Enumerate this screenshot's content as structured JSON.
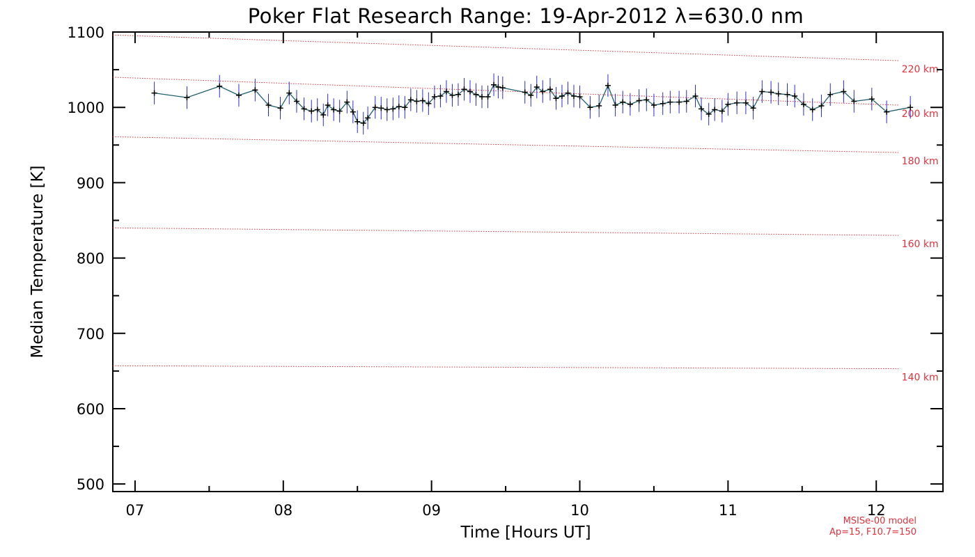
{
  "chart_data": {
    "type": "line",
    "title": "Poker Flat Research Range: 19-Apr-2012 λ=630.0 nm",
    "xlabel": "Time [Hours UT]",
    "ylabel": "Median Temperature [K]",
    "xlim": [
      6.85,
      12.45
    ],
    "ylim": [
      490,
      1100
    ],
    "x_ticks": [
      7,
      8,
      9,
      10,
      11,
      12
    ],
    "x_tick_labels": [
      "07",
      "08",
      "09",
      "10",
      "11",
      "12"
    ],
    "y_ticks": [
      500,
      600,
      700,
      800,
      900,
      1000,
      1100
    ],
    "y_tick_labels": [
      "500",
      "600",
      "700",
      "800",
      "900",
      "1000",
      "1100"
    ],
    "grid": false,
    "colors": {
      "series_line": "#1e5f6e",
      "marker": "#000000",
      "error_bar": "#2b2bd6",
      "model_line": "#e0323c"
    },
    "series": [
      {
        "marker": "plus",
        "error_bar": 15,
        "x": [
          7.13,
          7.35,
          7.57,
          7.7,
          7.81,
          7.9,
          7.98,
          8.04,
          8.09,
          8.14,
          8.19,
          8.23,
          8.27,
          8.3,
          8.34,
          8.38,
          8.43,
          8.47,
          8.5,
          8.54,
          8.57,
          8.62,
          8.66,
          8.7,
          8.74,
          8.78,
          8.82,
          8.86,
          8.9,
          8.94,
          8.98,
          9.02,
          9.06,
          9.1,
          9.14,
          9.18,
          9.22,
          9.26,
          9.3,
          9.34,
          9.38,
          9.42,
          9.45,
          9.48,
          9.63,
          9.67,
          9.71,
          9.75,
          9.8,
          9.84,
          9.88,
          9.92,
          9.96,
          10.0,
          10.07,
          10.13,
          10.19,
          10.24,
          10.29,
          10.34,
          10.4,
          10.45,
          10.5,
          10.56,
          10.61,
          10.67,
          10.72,
          10.78,
          10.82,
          10.87,
          10.91,
          10.96,
          11.0,
          11.06,
          11.12,
          11.17,
          11.23,
          11.29,
          11.34,
          11.4,
          11.45,
          11.51,
          11.57,
          11.63,
          11.69,
          11.78,
          11.85,
          11.97,
          12.07,
          12.23
        ],
        "y": [
          1019,
          1013,
          1028,
          1016,
          1023,
          1003,
          999,
          1019,
          1008,
          998,
          995,
          997,
          990,
          1003,
          997,
          995,
          1007,
          994,
          981,
          979,
          986,
          1000,
          999,
          997,
          998,
          1001,
          1000,
          1010,
          1008,
          1009,
          1005,
          1014,
          1015,
          1021,
          1016,
          1017,
          1024,
          1021,
          1017,
          1014,
          1014,
          1030,
          1027,
          1026,
          1020,
          1016,
          1027,
          1021,
          1024,
          1012,
          1015,
          1019,
          1015,
          1014,
          1000,
          1002,
          1029,
          1003,
          1007,
          1004,
          1009,
          1010,
          1003,
          1005,
          1007,
          1007,
          1008,
          1015,
          998,
          991,
          997,
          995,
          1004,
          1006,
          1006,
          999,
          1021,
          1020,
          1018,
          1017,
          1015,
          1004,
          997,
          1002,
          1017,
          1021,
          1008,
          1011,
          994,
          1000
        ]
      }
    ],
    "model_lines": [
      {
        "label": "220 km",
        "x": [
          6.85,
          12.15
        ],
        "y": [
          1096,
          1062
        ]
      },
      {
        "label": "200 km",
        "x": [
          6.85,
          12.15
        ],
        "y": [
          1040,
          1003
        ]
      },
      {
        "label": "180 km",
        "x": [
          6.85,
          12.15
        ],
        "y": [
          961,
          940
        ]
      },
      {
        "label": "160 km",
        "x": [
          6.85,
          12.15
        ],
        "y": [
          840,
          830
        ]
      },
      {
        "label": "140 km",
        "x": [
          6.85,
          12.15
        ],
        "y": [
          657,
          653
        ]
      }
    ],
    "annotations": {
      "model_name": "MSISe-00 model",
      "model_params": "Ap=15, F10.7=150"
    }
  }
}
